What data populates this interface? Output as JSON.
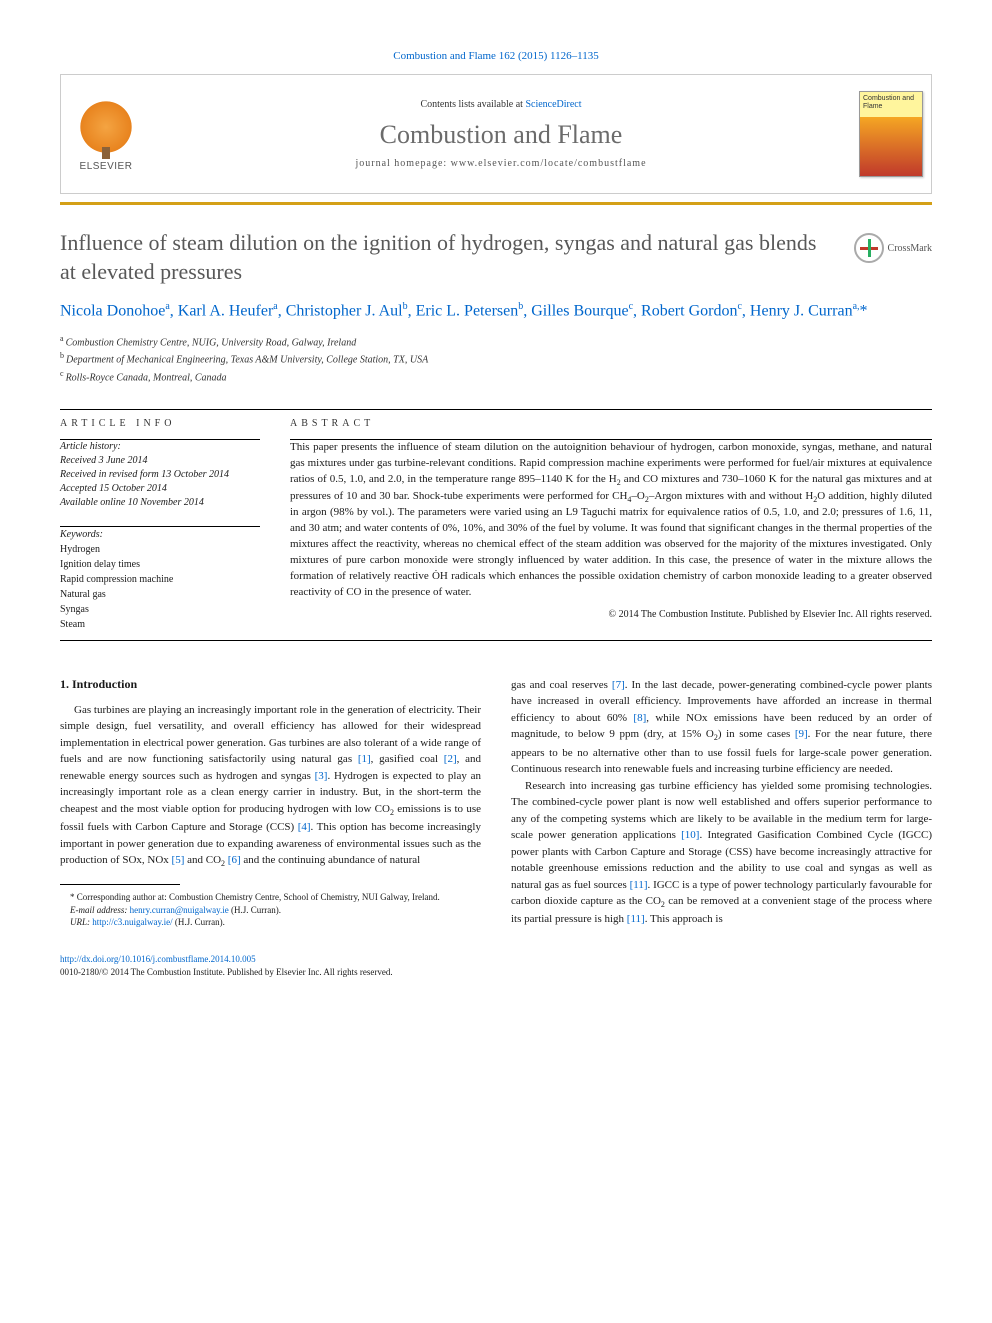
{
  "citation": "Combustion and Flame 162 (2015) 1126–1135",
  "header": {
    "contents_prefix": "Contents lists available at ",
    "contents_link": "ScienceDirect",
    "journal_name": "Combustion and Flame",
    "homepage": "journal homepage: www.elsevier.com/locate/combustflame",
    "publisher": "ELSEVIER",
    "cover_title": "Combustion and Flame"
  },
  "crossmark": "CrossMark",
  "article": {
    "title": "Influence of steam dilution on the ignition of hydrogen, syngas and natural gas blends at elevated pressures",
    "authors_html": "Nicola Donohoe<sup>a</sup>, Karl A. Heufer<sup>a</sup>, Christopher J. Aul<sup>b</sup>, Eric L. Petersen<sup>b</sup>, Gilles Bourque<sup>c</sup>, Robert Gordon<sup>c</sup>, Henry J. Curran<sup>a,</sup><span class=\"corr\">*</span>",
    "affiliations": [
      {
        "sup": "a",
        "text": "Combustion Chemistry Centre, NUIG, University Road, Galway, Ireland"
      },
      {
        "sup": "b",
        "text": "Department of Mechanical Engineering, Texas A&M University, College Station, TX, USA"
      },
      {
        "sup": "c",
        "text": "Rolls-Royce Canada, Montreal, Canada"
      }
    ]
  },
  "info": {
    "heading": "ARTICLE INFO",
    "history_label": "Article history:",
    "history": [
      "Received 3 June 2014",
      "Received in revised form 13 October 2014",
      "Accepted 15 October 2014",
      "Available online 10 November 2014"
    ],
    "keywords_label": "Keywords:",
    "keywords": [
      "Hydrogen",
      "Ignition delay times",
      "Rapid compression machine",
      "Natural gas",
      "Syngas",
      "Steam"
    ]
  },
  "abstract": {
    "heading": "ABSTRACT",
    "text": "This paper presents the influence of steam dilution on the autoignition behaviour of hydrogen, carbon monoxide, syngas, methane, and natural gas mixtures under gas turbine-relevant conditions. Rapid compression machine experiments were performed for fuel/air mixtures at equivalence ratios of 0.5, 1.0, and 2.0, in the temperature range 895–1140 K for the H₂ and CO mixtures and 730–1060 K for the natural gas mixtures and at pressures of 10 and 30 bar. Shock-tube experiments were performed for CH₄–O₂–Argon mixtures with and without H₂O addition, highly diluted in argon (98% by vol.). The parameters were varied using an L9 Taguchi matrix for equivalence ratios of 0.5, 1.0, and 2.0; pressures of 1.6, 11, and 30 atm; and water contents of 0%, 10%, and 30% of the fuel by volume. It was found that significant changes in the thermal properties of the mixtures affect the reactivity, whereas no chemical effect of the steam addition was observed for the majority of the mixtures investigated. Only mixtures of pure carbon monoxide were strongly influenced by water addition. In this case, the presence of water in the mixture allows the formation of relatively reactive ȮH radicals which enhances the possible oxidation chemistry of carbon monoxide leading to a greater observed reactivity of CO in the presence of water.",
    "copyright": "© 2014 The Combustion Institute. Published by Elsevier Inc. All rights reserved."
  },
  "body": {
    "heading": "1. Introduction",
    "col1_p1": "Gas turbines are playing an increasingly important role in the generation of electricity. Their simple design, fuel versatility, and overall efficiency has allowed for their widespread implementation in electrical power generation. Gas turbines are also tolerant of a wide range of fuels and are now functioning satisfactorily using natural gas [1], gasified coal [2], and renewable energy sources such as hydrogen and syngas [3]. Hydrogen is expected to play an increasingly important role as a clean energy carrier in industry. But, in the short-term the cheapest and the most viable option for producing hydrogen with low CO₂ emissions is to use fossil fuels with Carbon Capture and Storage (CCS) [4]. This option has become increasingly important in power generation due to expanding awareness of environmental issues such as the production of SOx, NOx [5] and CO₂ [6] and the continuing abundance of natural",
    "col2_p1": "gas and coal reserves [7]. In the last decade, power-generating combined-cycle power plants have increased in overall efficiency. Improvements have afforded an increase in thermal efficiency to about 60% [8], while NOx emissions have been reduced by an order of magnitude, to below 9 ppm (dry, at 15% O₂) in some cases [9]. For the near future, there appears to be no alternative other than to use fossil fuels for large-scale power generation. Continuous research into renewable fuels and increasing turbine efficiency are needed.",
    "col2_p2": "Research into increasing gas turbine efficiency has yielded some promising technologies. The combined-cycle power plant is now well established and offers superior performance to any of the competing systems which are likely to be available in the medium term for large-scale power generation applications [10]. Integrated Gasification Combined Cycle (IGCC) power plants with Carbon Capture and Storage (CSS) have become increasingly attractive for notable greenhouse emissions reduction and the ability to use coal and syngas as well as natural gas as fuel sources [11]. IGCC is a type of power technology particularly favourable for carbon dioxide capture as the CO₂ can be removed at a convenient stage of the process where its partial pressure is high [11]. This approach is"
  },
  "footnotes": {
    "corr": "Corresponding author at: Combustion Chemistry Centre, School of Chemistry, NUI Galway, Ireland.",
    "email_label": "E-mail address:",
    "email": "henry.curran@nuigalway.ie",
    "email_person": "(H.J. Curran).",
    "url_label": "URL:",
    "url": "http://c3.nuigalway.ie/",
    "url_person": "(H.J. Curran)."
  },
  "bottom": {
    "doi": "http://dx.doi.org/10.1016/j.combustflame.2014.10.005",
    "issn_copyright": "0010-2180/© 2014 The Combustion Institute. Published by Elsevier Inc. All rights reserved."
  },
  "refs": {
    "r1": "[1]",
    "r2": "[2]",
    "r3": "[3]",
    "r4": "[4]",
    "r5": "[5]",
    "r6": "[6]",
    "r7": "[7]",
    "r8": "[8]",
    "r9": "[9]",
    "r10": "[10]",
    "r11": "[11]"
  },
  "colors": {
    "link": "#0066cc",
    "title_grey": "#585858",
    "golden_bar": "#d4a017"
  }
}
